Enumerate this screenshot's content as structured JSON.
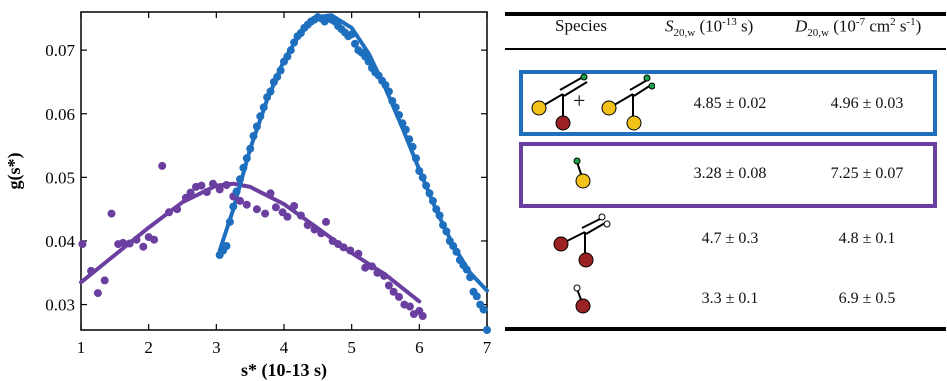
{
  "colors": {
    "purple": "#6a3fa0",
    "blue": "#1f6fbf",
    "gold": "#f2c21b",
    "red": "#9b2222",
    "green": "#1aa34a",
    "white": "#ffffff"
  },
  "chart_data": {
    "type": "scatter",
    "xlabel": "s* (10-13 s)",
    "ylabel": "g(s*)",
    "xlim": [
      1,
      7
    ],
    "ylim": [
      0.026,
      0.076
    ],
    "xticks": [
      "1",
      "2",
      "3",
      "4",
      "5",
      "6",
      "7"
    ],
    "yticks": [
      "0.03",
      "0.04",
      "0.05",
      "0.06",
      "0.07"
    ],
    "ytick_values": [
      0.03,
      0.04,
      0.05,
      0.06,
      0.07
    ],
    "grid": false,
    "series": [
      {
        "color": "#6a3fa0",
        "points": [
          [
            1.02,
            0.0395
          ],
          [
            1.15,
            0.0353
          ],
          [
            1.25,
            0.0318
          ],
          [
            1.35,
            0.0338
          ],
          [
            1.45,
            0.0443
          ],
          [
            1.55,
            0.0395
          ],
          [
            1.62,
            0.0397
          ],
          [
            1.72,
            0.0396
          ],
          [
            1.82,
            0.0402
          ],
          [
            1.92,
            0.0391
          ],
          [
            2.0,
            0.0406
          ],
          [
            2.08,
            0.0402
          ],
          [
            2.2,
            0.0518
          ],
          [
            2.3,
            0.0445
          ],
          [
            2.42,
            0.045
          ],
          [
            2.55,
            0.0468
          ],
          [
            2.62,
            0.0476
          ],
          [
            2.7,
            0.0485
          ],
          [
            2.78,
            0.0487
          ],
          [
            2.86,
            0.0477
          ],
          [
            2.95,
            0.049
          ],
          [
            3.05,
            0.0481
          ],
          [
            3.15,
            0.0488
          ],
          [
            3.25,
            0.047
          ],
          [
            3.35,
            0.0463
          ],
          [
            3.45,
            0.0457
          ],
          [
            3.6,
            0.045
          ],
          [
            3.72,
            0.0443
          ],
          [
            3.8,
            0.0475
          ],
          [
            3.88,
            0.0453
          ],
          [
            3.98,
            0.0445
          ],
          [
            4.05,
            0.0438
          ],
          [
            4.15,
            0.0455
          ],
          [
            4.25,
            0.044
          ],
          [
            4.35,
            0.0425
          ],
          [
            4.45,
            0.0418
          ],
          [
            4.55,
            0.0412
          ],
          [
            4.62,
            0.043
          ],
          [
            4.72,
            0.04
          ],
          [
            4.8,
            0.0395
          ],
          [
            4.88,
            0.039
          ],
          [
            4.98,
            0.0385
          ],
          [
            5.1,
            0.038
          ],
          [
            5.2,
            0.0358
          ],
          [
            5.3,
            0.036
          ],
          [
            5.38,
            0.035
          ],
          [
            5.48,
            0.0345
          ],
          [
            5.55,
            0.033
          ],
          [
            5.62,
            0.032
          ],
          [
            5.7,
            0.0312
          ],
          [
            5.78,
            0.03
          ],
          [
            5.86,
            0.0297
          ],
          [
            5.92,
            0.0285
          ],
          [
            6.0,
            0.029
          ],
          [
            6.05,
            0.0282
          ]
        ],
        "fit": [
          [
            1.0,
            0.0335
          ],
          [
            1.5,
            0.0378
          ],
          [
            2.0,
            0.0421
          ],
          [
            2.5,
            0.0461
          ],
          [
            3.0,
            0.0487
          ],
          [
            3.25,
            0.049
          ],
          [
            3.5,
            0.0485
          ],
          [
            4.0,
            0.0458
          ],
          [
            4.5,
            0.042
          ],
          [
            5.0,
            0.0381
          ],
          [
            5.5,
            0.0347
          ],
          [
            6.0,
            0.0305
          ]
        ]
      },
      {
        "color": "#1f6fbf",
        "points": [
          [
            3.05,
            0.0378
          ],
          [
            3.1,
            0.0385
          ],
          [
            3.15,
            0.0392
          ],
          [
            3.2,
            0.043
          ],
          [
            3.25,
            0.0454
          ],
          [
            3.3,
            0.0478
          ],
          [
            3.35,
            0.0497
          ],
          [
            3.4,
            0.0515
          ],
          [
            3.45,
            0.053
          ],
          [
            3.5,
            0.0545
          ],
          [
            3.55,
            0.0565
          ],
          [
            3.6,
            0.058
          ],
          [
            3.65,
            0.0596
          ],
          [
            3.7,
            0.061
          ],
          [
            3.75,
            0.0626
          ],
          [
            3.8,
            0.0635
          ],
          [
            3.85,
            0.065
          ],
          [
            3.9,
            0.0658
          ],
          [
            3.95,
            0.0668
          ],
          [
            4.0,
            0.0682
          ],
          [
            4.05,
            0.069
          ],
          [
            4.1,
            0.07
          ],
          [
            4.15,
            0.0712
          ],
          [
            4.2,
            0.0722
          ],
          [
            4.25,
            0.0727
          ],
          [
            4.3,
            0.0735
          ],
          [
            4.35,
            0.074
          ],
          [
            4.4,
            0.0745
          ],
          [
            4.45,
            0.0748
          ],
          [
            4.5,
            0.0752
          ],
          [
            4.55,
            0.075
          ],
          [
            4.6,
            0.0745
          ],
          [
            4.65,
            0.0751
          ],
          [
            4.7,
            0.0748
          ],
          [
            4.75,
            0.0745
          ],
          [
            4.8,
            0.0738
          ],
          [
            4.85,
            0.0733
          ],
          [
            4.9,
            0.0728
          ],
          [
            4.95,
            0.0722
          ],
          [
            5.0,
            0.0725
          ],
          [
            5.05,
            0.071
          ],
          [
            5.1,
            0.07
          ],
          [
            5.15,
            0.0696
          ],
          [
            5.2,
            0.069
          ],
          [
            5.25,
            0.0682
          ],
          [
            5.3,
            0.0672
          ],
          [
            5.35,
            0.0665
          ],
          [
            5.4,
            0.066
          ],
          [
            5.45,
            0.0652
          ],
          [
            5.5,
            0.0645
          ],
          [
            5.55,
            0.0635
          ],
          [
            5.6,
            0.062
          ],
          [
            5.65,
            0.061
          ],
          [
            5.7,
            0.0598
          ],
          [
            5.75,
            0.0585
          ],
          [
            5.8,
            0.0575
          ],
          [
            5.85,
            0.056
          ],
          [
            5.9,
            0.0548
          ],
          [
            5.95,
            0.053
          ],
          [
            6.0,
            0.051
          ],
          [
            6.05,
            0.05
          ],
          [
            6.1,
            0.0487
          ],
          [
            6.15,
            0.0475
          ],
          [
            6.2,
            0.0463
          ],
          [
            6.25,
            0.045
          ],
          [
            6.3,
            0.044
          ],
          [
            6.35,
            0.0425
          ],
          [
            6.4,
            0.0415
          ],
          [
            6.45,
            0.04
          ],
          [
            6.5,
            0.0392
          ],
          [
            6.55,
            0.0383
          ],
          [
            6.6,
            0.037
          ],
          [
            6.65,
            0.0362
          ],
          [
            6.7,
            0.0355
          ],
          [
            6.75,
            0.0343
          ],
          [
            6.8,
            0.032
          ],
          [
            6.85,
            0.0313
          ],
          [
            6.9,
            0.03
          ],
          [
            6.95,
            0.0292
          ],
          [
            7.0,
            0.026
          ]
        ],
        "fit": [
          [
            3.05,
            0.0385
          ],
          [
            3.25,
            0.045
          ],
          [
            3.5,
            0.0545
          ],
          [
            3.75,
            0.0622
          ],
          [
            4.0,
            0.0684
          ],
          [
            4.25,
            0.0728
          ],
          [
            4.5,
            0.0752
          ],
          [
            4.7,
            0.0755
          ],
          [
            5.0,
            0.0735
          ],
          [
            5.25,
            0.0695
          ],
          [
            5.5,
            0.064
          ],
          [
            5.75,
            0.0578
          ],
          [
            6.0,
            0.0512
          ],
          [
            6.25,
            0.0448
          ],
          [
            6.5,
            0.0393
          ],
          [
            6.75,
            0.035
          ],
          [
            7.0,
            0.0322
          ]
        ]
      }
    ]
  },
  "table": {
    "col_species": "Species",
    "col_s_sym": "S",
    "col_s_sub": "20,w",
    "col_s_unit_pre": "(10",
    "col_s_unit_sup": "-13",
    "col_s_unit_post": " s)",
    "col_d_sym": "D",
    "col_d_sub": "20,w",
    "col_d_unit_pre": "(10",
    "col_d_unit_sup": "-7",
    "col_d_unit_mid": " cm",
    "col_d_unit_sup2": "2",
    "col_d_unit_mid2": " s",
    "col_d_unit_sup3": "-1",
    "col_d_unit_post": ")",
    "plus": "+",
    "rows": [
      {
        "s": "4.85 ± 0.02",
        "d": "4.96 ± 0.03"
      },
      {
        "s": "3.28 ± 0.08",
        "d": "7.25 ± 0.07"
      },
      {
        "s": "4.7 ± 0.3",
        "d": "4.8 ± 0.1"
      },
      {
        "s": "3.3 ± 0.1",
        "d": "6.9 ± 0.5"
      }
    ]
  }
}
